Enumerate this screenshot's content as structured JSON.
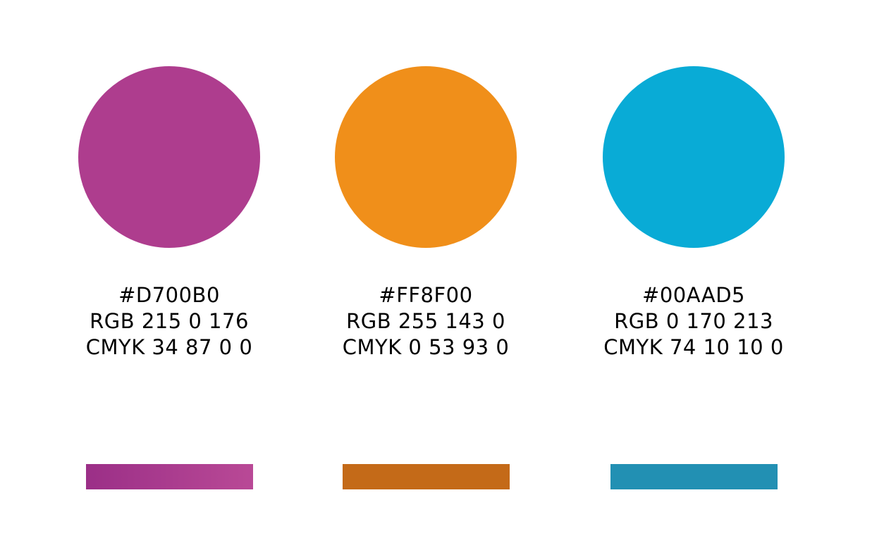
{
  "swatches": [
    {
      "hex": "#D700B0",
      "rgb": "RGB 215 0 176",
      "cmyk": "CMYK 34 87 0 0",
      "circle_color": "#ae3d8e",
      "bar_gradient_start": "#9b2f87",
      "bar_gradient_end": "#b94996"
    },
    {
      "hex": "#FF8F00",
      "rgb": "RGB 255 143 0",
      "cmyk": "CMYK 0 53 93 0",
      "circle_color": "#f08f1a",
      "bar_gradient_start": "#c46a18",
      "bar_gradient_end": "#c46a18"
    },
    {
      "hex": "#00AAD5",
      "rgb": "RGB 0 170 213",
      "cmyk": "CMYK 74 10 10 0",
      "circle_color": "#09abd6",
      "bar_gradient_start": "#2290b3",
      "bar_gradient_end": "#2290b3"
    }
  ]
}
